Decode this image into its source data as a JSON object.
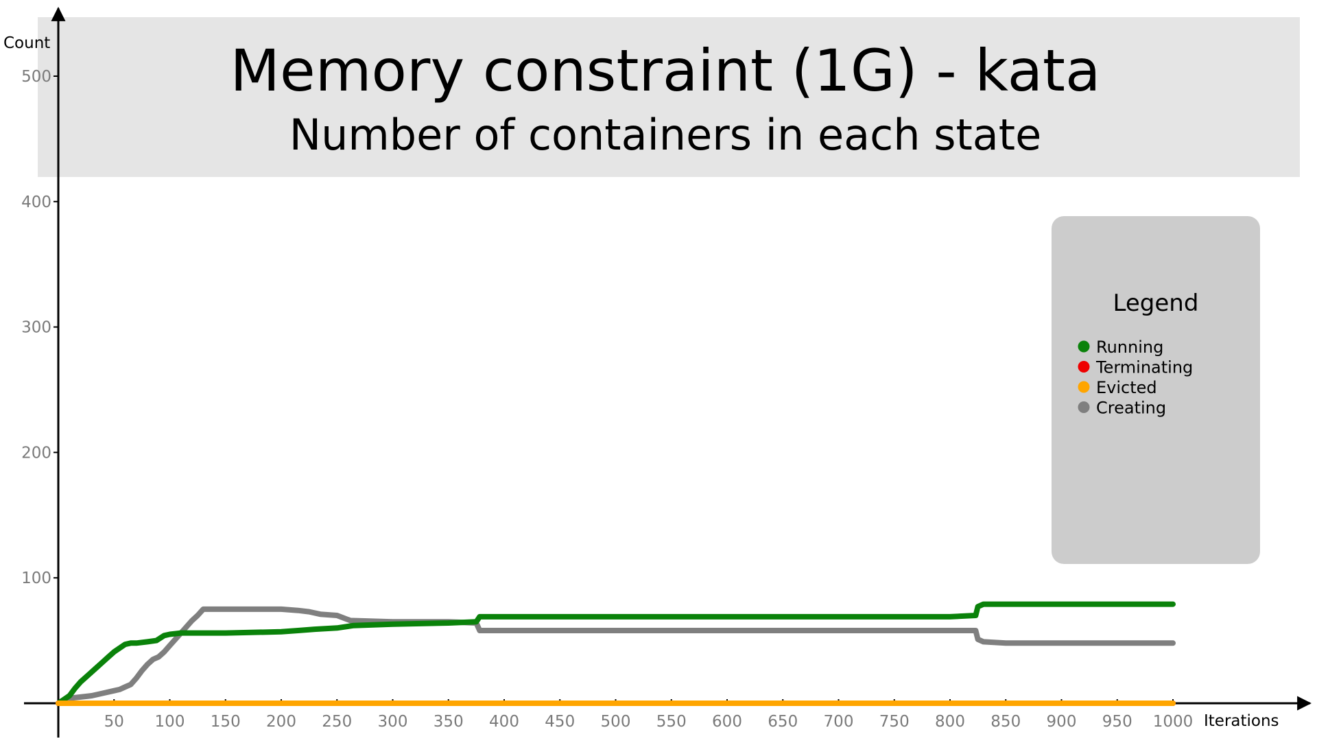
{
  "chart_data": {
    "type": "line",
    "title": "Memory constraint (1G) - kata",
    "subtitle": "Number of containers in each state",
    "xlabel": "Iterations",
    "ylabel": "Count",
    "xlim": [
      0,
      1000
    ],
    "ylim": [
      0,
      500
    ],
    "x_ticks": [
      50,
      100,
      150,
      200,
      250,
      300,
      350,
      400,
      450,
      500,
      550,
      600,
      650,
      700,
      750,
      800,
      850,
      900,
      950,
      1000
    ],
    "y_ticks": [
      100,
      200,
      300,
      400,
      500
    ],
    "grid": false,
    "legend": {
      "title": "Legend",
      "placement": "right"
    },
    "series": [
      {
        "name": "Running",
        "color": "#0a820a",
        "points": [
          [
            0,
            0
          ],
          [
            5,
            3
          ],
          [
            10,
            6
          ],
          [
            15,
            12
          ],
          [
            20,
            17
          ],
          [
            25,
            21
          ],
          [
            30,
            25
          ],
          [
            35,
            29
          ],
          [
            40,
            33
          ],
          [
            45,
            37
          ],
          [
            50,
            41
          ],
          [
            55,
            44
          ],
          [
            60,
            47
          ],
          [
            65,
            48
          ],
          [
            70,
            48
          ],
          [
            80,
            49
          ],
          [
            88,
            50
          ],
          [
            95,
            54
          ],
          [
            100,
            55
          ],
          [
            110,
            56
          ],
          [
            150,
            56
          ],
          [
            200,
            57
          ],
          [
            215,
            58
          ],
          [
            230,
            59
          ],
          [
            250,
            60
          ],
          [
            265,
            62
          ],
          [
            300,
            63
          ],
          [
            350,
            64
          ],
          [
            375,
            65
          ],
          [
            378,
            69
          ],
          [
            400,
            69
          ],
          [
            600,
            69
          ],
          [
            800,
            69
          ],
          [
            823,
            70
          ],
          [
            825,
            77
          ],
          [
            830,
            79
          ],
          [
            850,
            79
          ],
          [
            1000,
            79
          ]
        ]
      },
      {
        "name": "Terminating",
        "color": "#ee0000",
        "points": [
          [
            0,
            0
          ],
          [
            1000,
            0
          ]
        ]
      },
      {
        "name": "Evicted",
        "color": "#ffa500",
        "points": [
          [
            0,
            0
          ],
          [
            1000,
            0
          ]
        ]
      },
      {
        "name": "Creating",
        "color": "#7f7f7f",
        "points": [
          [
            0,
            0
          ],
          [
            10,
            4
          ],
          [
            20,
            5
          ],
          [
            30,
            6
          ],
          [
            40,
            8
          ],
          [
            50,
            10
          ],
          [
            55,
            11
          ],
          [
            60,
            13
          ],
          [
            65,
            15
          ],
          [
            70,
            20
          ],
          [
            75,
            26
          ],
          [
            80,
            31
          ],
          [
            85,
            35
          ],
          [
            90,
            37
          ],
          [
            95,
            41
          ],
          [
            100,
            46
          ],
          [
            105,
            51
          ],
          [
            110,
            56
          ],
          [
            115,
            61
          ],
          [
            120,
            66
          ],
          [
            125,
            70
          ],
          [
            130,
            75
          ],
          [
            140,
            75
          ],
          [
            200,
            75
          ],
          [
            215,
            74
          ],
          [
            225,
            73
          ],
          [
            235,
            71
          ],
          [
            250,
            70
          ],
          [
            262,
            66
          ],
          [
            300,
            65
          ],
          [
            350,
            65
          ],
          [
            375,
            64
          ],
          [
            378,
            58
          ],
          [
            400,
            58
          ],
          [
            600,
            58
          ],
          [
            800,
            58
          ],
          [
            823,
            58
          ],
          [
            825,
            51
          ],
          [
            830,
            49
          ],
          [
            850,
            48
          ],
          [
            1000,
            48
          ]
        ]
      }
    ]
  }
}
